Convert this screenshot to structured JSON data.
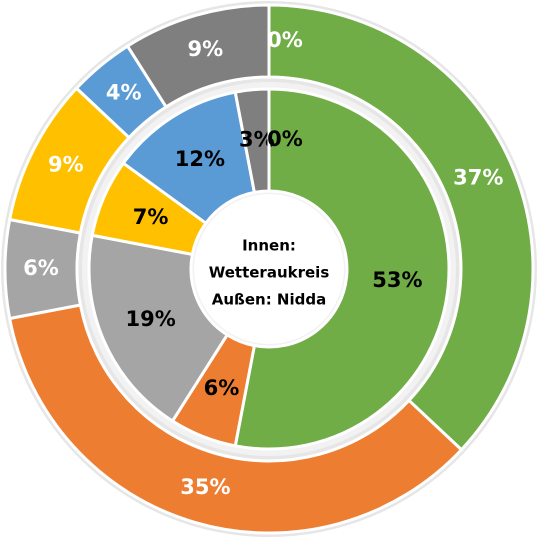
{
  "chart_data": {
    "type": "donut",
    "center_text": [
      "Innen:",
      "Wetteraukreis",
      "Außen: Nidda"
    ],
    "categories": [
      null,
      null,
      null,
      null,
      null,
      null,
      null
    ],
    "colors": [
      "#70ad47",
      "#ed7d31",
      "#a5a5a5",
      "#ffc000",
      "#5b9bd5",
      "#7f7f7f",
      "#ffffff"
    ],
    "series": [
      {
        "values": [
          53,
          6,
          19,
          7,
          12,
          3,
          0
        ],
        "value_labels": [
          "53%",
          "6%",
          "19%",
          "7%",
          "12%",
          "3%",
          "0%"
        ]
      },
      {
        "values": [
          37,
          35,
          6,
          9,
          4,
          9,
          0
        ],
        "value_labels": [
          "37%",
          "35%",
          "6%",
          "9%",
          "4%",
          "9%",
          "0%"
        ]
      }
    ]
  }
}
